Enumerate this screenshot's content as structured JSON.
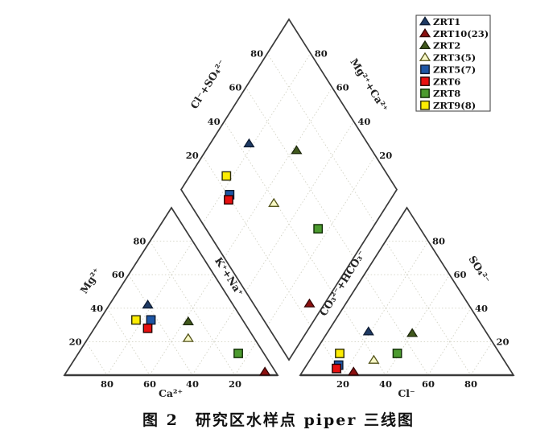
{
  "figure": {
    "caption": "图 2　研究区水样点 piper 三线图"
  },
  "chart_data": {
    "type": "piper-trilinear",
    "title": "图 2 研究区水样点 piper 三线图",
    "tick_values": [
      20,
      40,
      60,
      80
    ],
    "axes": {
      "diamond_upper_left": "Cl⁻+SO₄²⁻",
      "diamond_upper_right": "Mg²⁺+Ca²⁺",
      "cation_left": "Mg²⁺",
      "cation_right": "K⁺+Na⁺",
      "cation_bottom": "Ca²⁺",
      "anion_left": "CO₃²⁻+HCO₃⁻",
      "anion_right": "SO₄²⁻",
      "anion_bottom": "Cl⁻"
    },
    "grid": {
      "interval_percent": 20,
      "style": "dotted",
      "color": "#d2d2c4"
    },
    "line_color": "#3a3a3a",
    "tick_color": "#1a1a1a",
    "legend": {
      "position": "top-right",
      "border_color": "#4a4a4a",
      "background": "#ffffff"
    },
    "series": [
      {
        "name": "ZRT1",
        "marker": "triangle",
        "fill": "#1e3a64",
        "edge": "#0e1c33",
        "cations": {
          "Ca": 40,
          "Mg": 42,
          "Na_K": 18
        },
        "anions": {
          "HCO3": 55,
          "SO4": 26,
          "Cl": 19
        }
      },
      {
        "name": "ZRT10(23)",
        "marker": "triangle",
        "fill": "#8c1010",
        "edge": "#330404",
        "cations": {
          "Ca": 5,
          "Mg": 2,
          "Na_K": 93
        },
        "anions": {
          "HCO3": 74,
          "SO4": 2,
          "Cl": 24
        }
      },
      {
        "name": "ZRT2",
        "marker": "triangle",
        "fill": "#41591d",
        "edge": "#1c270b",
        "cations": {
          "Ca": 26,
          "Mg": 32,
          "Na_K": 42
        },
        "anions": {
          "HCO3": 35,
          "SO4": 25,
          "Cl": 40
        }
      },
      {
        "name": "ZRT3(5)",
        "marker": "triangle",
        "fill": "#f8f8c6",
        "edge": "#55551c",
        "cations": {
          "Ca": 31,
          "Mg": 22,
          "Na_K": 47
        },
        "anions": {
          "HCO3": 61,
          "SO4": 9,
          "Cl": 30
        }
      },
      {
        "name": "ZRT5(7)",
        "marker": "square",
        "fill": "#1d56a5",
        "edge": "#0c1a30",
        "cations": {
          "Ca": 43,
          "Mg": 33,
          "Na_K": 24
        },
        "anions": {
          "HCO3": 79,
          "SO4": 6,
          "Cl": 15
        }
      },
      {
        "name": "ZRT6",
        "marker": "square",
        "fill": "#e81010",
        "edge": "#250303",
        "cations": {
          "Ca": 47,
          "Mg": 28,
          "Na_K": 25
        },
        "anions": {
          "HCO3": 81,
          "SO4": 4,
          "Cl": 15
        }
      },
      {
        "name": "ZRT8",
        "marker": "square",
        "fill": "#4c9b2f",
        "edge": "#112b06",
        "cations": {
          "Ca": 12,
          "Mg": 13,
          "Na_K": 75
        },
        "anions": {
          "HCO3": 48,
          "SO4": 13,
          "Cl": 39
        }
      },
      {
        "name": "ZRT9(8)",
        "marker": "square",
        "fill": "#fcec03",
        "edge": "#2b2b06",
        "cations": {
          "Ca": 50,
          "Mg": 33,
          "Na_K": 17
        },
        "anions": {
          "HCO3": 75,
          "SO4": 13,
          "Cl": 12
        }
      }
    ]
  }
}
